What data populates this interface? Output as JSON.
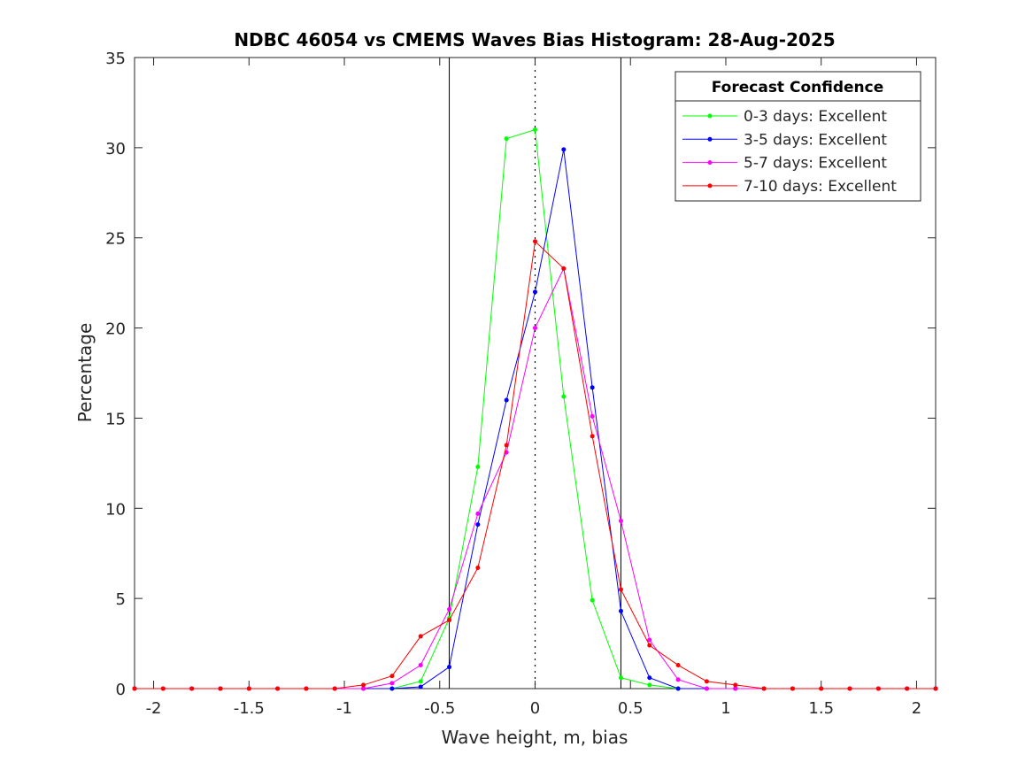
{
  "chart_data": {
    "type": "line",
    "title": "NDBC 46054 vs CMEMS Waves Bias Histogram: 28-Aug-2025",
    "xlabel": "Wave height, m, bias",
    "ylabel": "Percentage",
    "xlim": [
      -2.1,
      2.1
    ],
    "ylim": [
      0,
      35
    ],
    "xticks": [
      -2,
      -1.5,
      -1,
      -0.5,
      0,
      0.5,
      1,
      1.5,
      2
    ],
    "xtick_labels": [
      "-2",
      "-1.5",
      "-1",
      "-0.5",
      "0",
      "0.5",
      "1",
      "1.5",
      "2"
    ],
    "yticks": [
      0,
      5,
      10,
      15,
      20,
      25,
      30,
      35
    ],
    "ytick_labels": [
      "0",
      "5",
      "10",
      "15",
      "20",
      "25",
      "30",
      "35"
    ],
    "grid": false,
    "vertical_lines": [
      -0.45,
      0.45
    ],
    "zero_line": 0,
    "legend": {
      "title": "Forecast Confidence",
      "placement": "top-right"
    },
    "x": [
      -2.1,
      -1.95,
      -1.8,
      -1.65,
      -1.5,
      -1.35,
      -1.2,
      -1.05,
      -0.9,
      -0.75,
      -0.6,
      -0.45,
      -0.3,
      -0.15,
      0,
      0.15,
      0.3,
      0.45,
      0.6,
      0.75,
      0.9,
      1.05,
      1.2,
      1.35,
      1.5,
      1.65,
      1.8,
      1.95,
      2.1
    ],
    "series": [
      {
        "name": "0-3 days: Excellent",
        "color": "#00ff00",
        "values": [
          0,
          0,
          0,
          0,
          0,
          0,
          0,
          0,
          0,
          0,
          0.4,
          3.9,
          12.3,
          30.5,
          31.0,
          16.2,
          4.9,
          0.6,
          0.2,
          0,
          0,
          0,
          0,
          0,
          0,
          0,
          0,
          0,
          0
        ]
      },
      {
        "name": "3-5 days: Excellent",
        "color": "#0000ff",
        "values": [
          0,
          0,
          0,
          0,
          0,
          0,
          0,
          0,
          0,
          0,
          0.1,
          1.2,
          9.1,
          16.0,
          22.0,
          29.9,
          16.7,
          4.3,
          0.6,
          0,
          0,
          0,
          0,
          0,
          0,
          0,
          0,
          0,
          0
        ]
      },
      {
        "name": "5-7 days: Excellent",
        "color": "#ff00ff",
        "values": [
          0,
          0,
          0,
          0,
          0,
          0,
          0,
          0,
          0,
          0.3,
          1.3,
          4.4,
          9.7,
          13.1,
          20.0,
          23.3,
          15.1,
          9.3,
          2.7,
          0.5,
          0,
          0,
          0,
          0,
          0,
          0,
          0,
          0,
          0
        ]
      },
      {
        "name": "7-10 days: Excellent",
        "color": "#ff0000",
        "values": [
          0,
          0,
          0,
          0,
          0,
          0,
          0,
          0,
          0.2,
          0.7,
          2.9,
          3.8,
          6.7,
          13.5,
          24.8,
          23.3,
          14.0,
          5.5,
          2.4,
          1.3,
          0.4,
          0.2,
          0,
          0,
          0,
          0,
          0,
          0,
          0
        ]
      }
    ]
  }
}
